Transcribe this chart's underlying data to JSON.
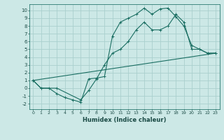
{
  "xlabel": "Humidex (Indice chaleur)",
  "bg_color": "#cce8e6",
  "grid_color": "#aad0ce",
  "line_color": "#1a6e62",
  "xlim": [
    -0.5,
    23.5
  ],
  "ylim": [
    -2.7,
    10.8
  ],
  "xticks": [
    0,
    1,
    2,
    3,
    4,
    5,
    6,
    7,
    8,
    9,
    10,
    11,
    12,
    13,
    14,
    15,
    16,
    17,
    18,
    19,
    20,
    21,
    22,
    23
  ],
  "yticks": [
    -2,
    -1,
    0,
    1,
    2,
    3,
    4,
    5,
    6,
    7,
    8,
    9,
    10
  ],
  "line1_x": [
    0,
    1,
    2,
    3,
    4,
    5,
    6,
    7,
    8,
    9,
    10,
    11,
    12,
    13,
    14,
    15,
    16,
    17,
    18,
    19,
    20,
    21,
    22,
    23
  ],
  "line1_y": [
    1.0,
    0.0,
    0.0,
    -0.7,
    -1.2,
    -1.5,
    -1.8,
    1.2,
    1.3,
    1.5,
    6.7,
    8.5,
    9.0,
    9.5,
    10.3,
    9.5,
    10.2,
    10.3,
    9.2,
    8.0,
    5.5,
    5.0,
    4.5,
    4.5
  ],
  "line2_x": [
    0,
    1,
    3,
    6,
    7,
    8,
    9,
    10,
    11,
    12,
    13,
    14,
    15,
    16,
    17,
    18,
    19,
    20,
    21,
    22,
    23
  ],
  "line2_y": [
    1.0,
    0.0,
    0.0,
    -1.5,
    -0.3,
    1.2,
    3.0,
    4.5,
    5.0,
    6.0,
    7.5,
    8.5,
    7.5,
    7.5,
    8.0,
    9.5,
    8.5,
    5.0,
    5.0,
    4.5,
    4.5
  ],
  "line3_x": [
    0,
    23
  ],
  "line3_y": [
    1.0,
    4.5
  ]
}
